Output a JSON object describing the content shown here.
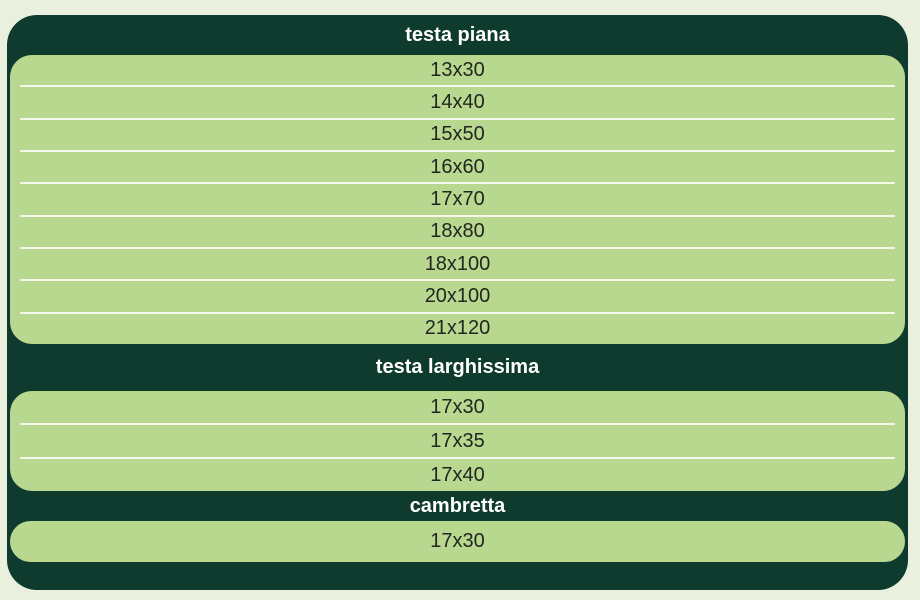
{
  "table": {
    "sections": [
      {
        "header": "testa piana",
        "rows": [
          "13x30",
          "14x40",
          "15x50",
          "16x60",
          "17x70",
          "18x80",
          "18x100",
          "20x100",
          "21x120"
        ]
      },
      {
        "header": "testa larghissima",
        "rows": [
          "17x30",
          "17x35",
          "17x40"
        ]
      },
      {
        "header": "cambretta",
        "rows": [
          "17x30"
        ]
      }
    ]
  },
  "colors": {
    "page_bg": "#e9f1de",
    "dark_green": "#0f3a2e",
    "row_green": "#b9d88f",
    "separator": "#f3f8ea",
    "header_text": "#ffffff",
    "row_text": "#212720"
  }
}
